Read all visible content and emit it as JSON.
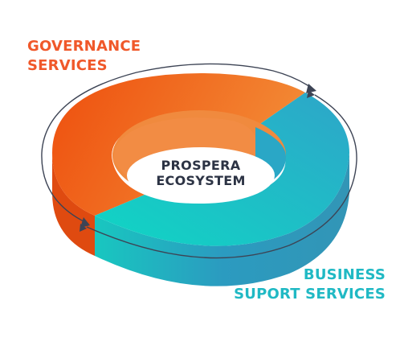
{
  "center_label": {
    "line1": "PROSPERA",
    "line2": "ECOSYSTEM"
  },
  "segments": [
    {
      "id": "governance",
      "line1": "GOVERNANCE",
      "line2": "SERVICES",
      "color": "#f0582a"
    },
    {
      "id": "business",
      "line1": "BUSINESS",
      "line2": "SUPORT SERVICES",
      "color": "#20b9c4"
    }
  ],
  "colors": {
    "orange_top_light": "#f38a35",
    "orange_top_dark": "#ee5413",
    "orange_side": "#e04a10",
    "teal_top_light": "#17d8c5",
    "teal_top_dark": "#2aa9d0",
    "teal_side": "#2f94b8",
    "center_text": "#2c3344",
    "arrow": "#3d4455"
  }
}
